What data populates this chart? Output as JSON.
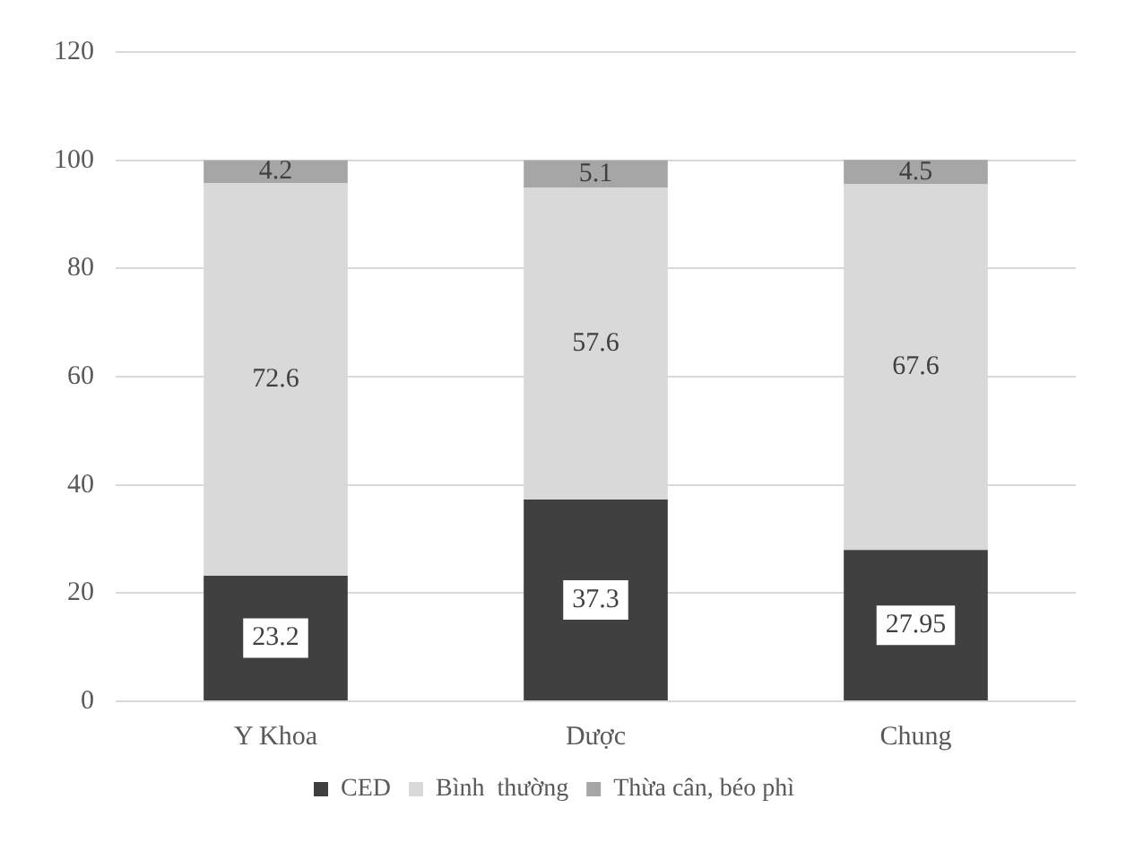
{
  "chart_data": {
    "type": "bar",
    "stacked": true,
    "categories": [
      "Y Khoa",
      "Dược",
      "Chung"
    ],
    "series": [
      {
        "name": "CED",
        "color": "#404040",
        "values": [
          23.2,
          37.3,
          27.95
        ]
      },
      {
        "name": "Bình  thường",
        "color": "#d9d9d9",
        "values": [
          72.6,
          57.6,
          67.6
        ]
      },
      {
        "name": "Thừa cân, béo phì",
        "color": "#a6a6a6",
        "values": [
          4.2,
          5.1,
          4.5
        ]
      }
    ],
    "ylim": [
      0,
      120
    ],
    "yticks": [
      0,
      20,
      40,
      60,
      80,
      100,
      120
    ],
    "grid": "y",
    "legend": "bottom",
    "data_labels": true
  }
}
